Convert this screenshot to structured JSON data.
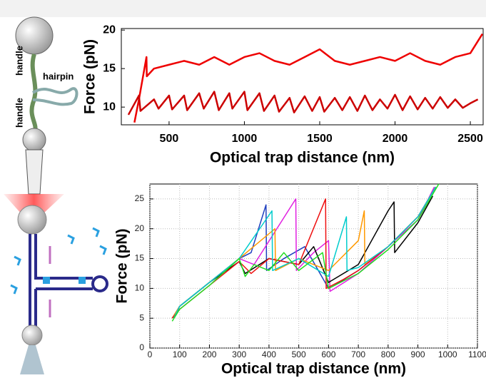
{
  "diagram_labels": [
    "handle",
    "hairpin",
    "handle"
  ],
  "chart_data": [
    {
      "type": "line",
      "x_label": "Optical trap distance (nm)",
      "y_label": "Force (pN)",
      "xlim": [
        183,
        2585
      ],
      "ylim": [
        7.7,
        20.2
      ],
      "xticks": [
        500,
        1000,
        1500,
        2000,
        2500
      ],
      "yticks": [
        10,
        15,
        20
      ],
      "grid": false,
      "series": [
        {
          "color": "#ee0000",
          "x": [
            270,
            300,
            350,
            352,
            400,
            500,
            600,
            700,
            800,
            900,
            1000,
            1100,
            1200,
            1300,
            1400,
            1500,
            1600,
            1700,
            1800,
            1900,
            2000,
            2100,
            2200,
            2300,
            2400,
            2500,
            2580
          ],
          "values": [
            8,
            11,
            16.5,
            14,
            15,
            15.5,
            16,
            15.5,
            16.5,
            15.5,
            16.5,
            17,
            16,
            15.5,
            16.5,
            17.5,
            16,
            15.5,
            16,
            16.5,
            16,
            17,
            16,
            15.5,
            16.5,
            17,
            19.5
          ]
        },
        {
          "color": "#cc0000",
          "x": [
            230,
            300,
            310,
            400,
            430,
            500,
            520,
            600,
            620,
            700,
            730,
            800,
            830,
            900,
            920,
            1000,
            1020,
            1100,
            1130,
            1200,
            1230,
            1300,
            1330,
            1400,
            1450,
            1500,
            1530,
            1600,
            1650,
            1700,
            1750,
            1800,
            1850,
            1900,
            1950,
            2000,
            2050,
            2100,
            2150,
            2200,
            2250,
            2300,
            2350,
            2400,
            2450,
            2500,
            2550
          ],
          "values": [
            9,
            11.5,
            9.5,
            11,
            9.8,
            11.5,
            9.7,
            11.5,
            9.6,
            11.8,
            9.8,
            12,
            9.6,
            11.8,
            9.8,
            12,
            9.6,
            11.8,
            9.5,
            11.5,
            9.4,
            11.2,
            9.3,
            11.4,
            9.5,
            11.3,
            9.4,
            11.2,
            9.6,
            11.3,
            9.5,
            11.5,
            9.6,
            11,
            9.8,
            11.6,
            9.6,
            11.4,
            9.7,
            11.2,
            9.8,
            11.3,
            9.9,
            11,
            9.9,
            10.5,
            11
          ]
        }
      ]
    },
    {
      "type": "line",
      "x_label": "Optical trap distance (nm)",
      "y_label": "Force (pN)",
      "xlim": [
        0,
        1100
      ],
      "ylim": [
        0,
        27.5
      ],
      "xticks": [
        0,
        100,
        200,
        300,
        400,
        500,
        600,
        700,
        800,
        900,
        1000,
        1100
      ],
      "yticks": [
        0,
        5,
        10,
        15,
        20,
        25
      ],
      "grid": true,
      "series": [
        {
          "color": "#1f3fbf",
          "x": [
            75,
            100,
            200,
            300,
            340,
            390,
            392,
            450,
            520,
            600,
            620,
            700,
            800,
            900,
            960
          ],
          "values": [
            5,
            7,
            11,
            15,
            16,
            24,
            13,
            15,
            17,
            10,
            10.5,
            13,
            17,
            22,
            27
          ]
        },
        {
          "color": "#e020e0",
          "x": [
            80,
            100,
            200,
            300,
            350,
            490,
            492,
            550,
            600,
            605,
            700,
            800,
            900,
            955
          ],
          "values": [
            5,
            7,
            11,
            15,
            14,
            25,
            13,
            16,
            18,
            9.5,
            12.5,
            17,
            21.5,
            27
          ]
        },
        {
          "color": "#000000",
          "x": [
            80,
            100,
            200,
            300,
            320,
            400,
            500,
            550,
            600,
            700,
            800,
            820,
            822,
            900,
            950
          ],
          "values": [
            5,
            7,
            11,
            14.5,
            12.5,
            15,
            14,
            17,
            11,
            14,
            23,
            24.5,
            16,
            21,
            25.5
          ]
        },
        {
          "color": "#ff9900",
          "x": [
            75,
            100,
            200,
            300,
            420,
            422,
            500,
            600,
            700,
            720,
            722,
            800,
            900,
            960
          ],
          "values": [
            5,
            7,
            11,
            15,
            20,
            13,
            15,
            13,
            18,
            23,
            14,
            17,
            22,
            27
          ]
        },
        {
          "color": "#ee1111",
          "x": [
            75,
            100,
            200,
            300,
            340,
            400,
            500,
            590,
            592,
            650,
            700,
            800,
            900,
            960
          ],
          "values": [
            5,
            6.5,
            10.5,
            14.5,
            12.5,
            15,
            14,
            25,
            10,
            11.5,
            13,
            17,
            22,
            27
          ]
        },
        {
          "color": "#00cccc",
          "x": [
            80,
            100,
            200,
            300,
            410,
            412,
            500,
            600,
            660,
            662,
            700,
            800,
            900,
            960
          ],
          "values": [
            5,
            7,
            11,
            15,
            23,
            13,
            15,
            12,
            22,
            13,
            13.5,
            17,
            22,
            27
          ]
        },
        {
          "color": "#22dd22",
          "x": [
            75,
            100,
            200,
            300,
            320,
            350,
            400,
            450,
            500,
            580,
            600,
            700,
            800,
            900,
            970
          ],
          "values": [
            4.5,
            6.5,
            10.5,
            15,
            12,
            14,
            13,
            16,
            13,
            16,
            10,
            12.5,
            16.5,
            21.5,
            27.5
          ]
        }
      ]
    }
  ]
}
